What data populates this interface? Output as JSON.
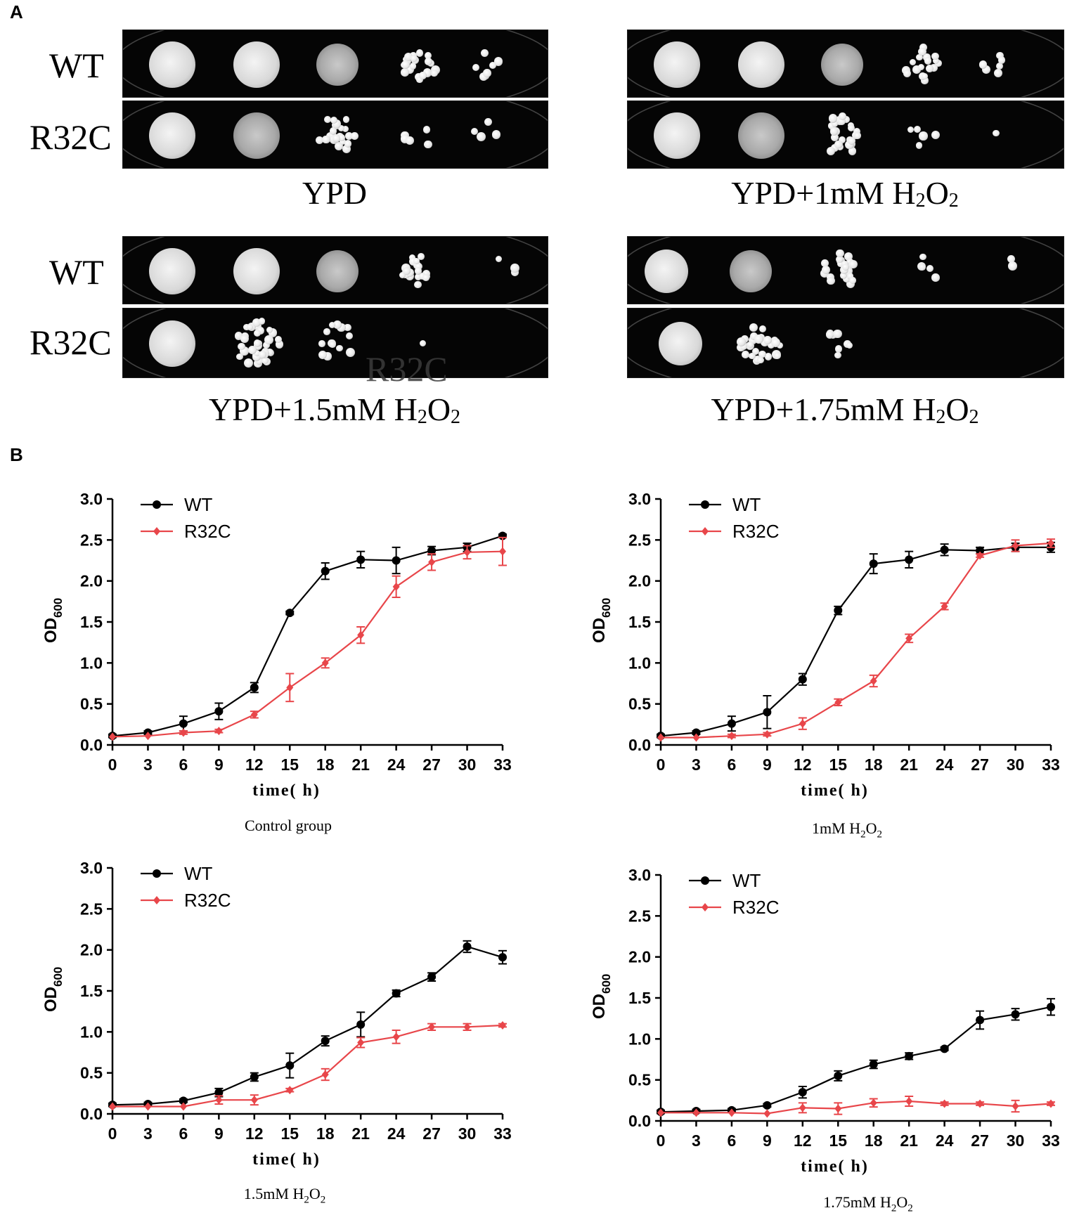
{
  "panel_a": {
    "letter": "A",
    "row_labels": [
      "WT",
      "R32C"
    ],
    "overlay_text": "R32C",
    "plates": [
      {
        "caption_prefix": "YPD",
        "caption_sub1": "",
        "caption_mid": "",
        "caption_sub2": ""
      },
      {
        "caption_prefix": "YPD+1mM H",
        "caption_sub1": "2",
        "caption_mid": "O",
        "caption_sub2": "2"
      },
      {
        "caption_prefix": "YPD+1.5mM H",
        "caption_sub1": "2",
        "caption_mid": "O",
        "caption_sub2": "2"
      },
      {
        "caption_prefix": "YPD+1.75mM H",
        "caption_sub1": "2",
        "caption_mid": "O",
        "caption_sub2": "2"
      }
    ]
  },
  "panel_b": {
    "letter": "B"
  },
  "colors": {
    "wt": "#000000",
    "r32c": "#e8464a"
  },
  "chart_data": [
    {
      "type": "line",
      "caption": {
        "prefix": "Control group",
        "sub1": "",
        "mid": "",
        "sub2": ""
      },
      "xlabel": "time( h)",
      "ylabel": "OD",
      "ylabel_sub": "600",
      "x": [
        0,
        3,
        6,
        9,
        12,
        15,
        18,
        21,
        24,
        27,
        30,
        33
      ],
      "ylim": [
        0,
        3.0
      ],
      "yticks": [
        "0.0",
        "0.5",
        "1.0",
        "1.5",
        "2.0",
        "2.5",
        "3.0"
      ],
      "legend_position": "top-left",
      "series": [
        {
          "name": "WT",
          "marker": "circle",
          "values": [
            0.11,
            0.15,
            0.26,
            0.41,
            0.7,
            1.61,
            2.12,
            2.26,
            2.25,
            2.37,
            2.41,
            2.55
          ],
          "errors": [
            0.02,
            0.02,
            0.09,
            0.1,
            0.06,
            0.02,
            0.1,
            0.1,
            0.16,
            0.05,
            0.05,
            0.02
          ]
        },
        {
          "name": "R32C",
          "marker": "diamond",
          "values": [
            0.1,
            0.11,
            0.15,
            0.17,
            0.37,
            0.7,
            1.0,
            1.34,
            1.93,
            2.23,
            2.35,
            2.36
          ],
          "errors": [
            0.01,
            0.01,
            0.02,
            0.02,
            0.04,
            0.17,
            0.06,
            0.1,
            0.13,
            0.1,
            0.08,
            0.17
          ]
        }
      ]
    },
    {
      "type": "line",
      "caption": {
        "prefix": "1mM H",
        "sub1": "2",
        "mid": "O",
        "sub2": "2"
      },
      "xlabel": "time( h)",
      "ylabel": "OD",
      "ylabel_sub": "600",
      "x": [
        0,
        3,
        6,
        9,
        12,
        15,
        18,
        21,
        24,
        27,
        30,
        33
      ],
      "ylim": [
        0,
        3.0
      ],
      "yticks": [
        "0.0",
        "0.5",
        "1.0",
        "1.5",
        "2.0",
        "2.5",
        "3.0"
      ],
      "legend_position": "top-left",
      "series": [
        {
          "name": "WT",
          "marker": "circle",
          "values": [
            0.11,
            0.15,
            0.26,
            0.4,
            0.8,
            1.64,
            2.21,
            2.26,
            2.38,
            2.37,
            2.41,
            2.41
          ],
          "errors": [
            0.02,
            0.02,
            0.09,
            0.2,
            0.07,
            0.05,
            0.12,
            0.1,
            0.07,
            0.04,
            0.05,
            0.06
          ]
        },
        {
          "name": "R32C",
          "marker": "diamond",
          "values": [
            0.09,
            0.09,
            0.11,
            0.13,
            0.26,
            0.52,
            0.78,
            1.3,
            1.69,
            2.31,
            2.43,
            2.46
          ],
          "errors": [
            0.01,
            0.01,
            0.02,
            0.02,
            0.07,
            0.04,
            0.07,
            0.05,
            0.04,
            0.02,
            0.07,
            0.05
          ]
        }
      ]
    },
    {
      "type": "line",
      "caption": {
        "prefix": "1.5mM H",
        "sub1": "2",
        "mid": "O",
        "sub2": "2"
      },
      "xlabel": "time( h)",
      "ylabel": "OD",
      "ylabel_sub": "600",
      "x": [
        0,
        3,
        6,
        9,
        12,
        15,
        18,
        21,
        24,
        27,
        30,
        33
      ],
      "ylim": [
        0,
        3.0
      ],
      "yticks": [
        "0.0",
        "0.5",
        "1.0",
        "1.5",
        "2.0",
        "2.5",
        "3.0"
      ],
      "legend_position": "top-left",
      "series": [
        {
          "name": "WT",
          "marker": "circle",
          "values": [
            0.11,
            0.12,
            0.16,
            0.26,
            0.45,
            0.59,
            0.89,
            1.09,
            1.47,
            1.67,
            2.04,
            1.91
          ],
          "errors": [
            0.02,
            0.02,
            0.02,
            0.05,
            0.05,
            0.15,
            0.06,
            0.15,
            0.04,
            0.05,
            0.07,
            0.08
          ]
        },
        {
          "name": "R32C",
          "marker": "diamond",
          "values": [
            0.09,
            0.09,
            0.09,
            0.17,
            0.17,
            0.29,
            0.48,
            0.87,
            0.94,
            1.06,
            1.06,
            1.08
          ],
          "errors": [
            0.01,
            0.01,
            0.01,
            0.05,
            0.06,
            0.02,
            0.07,
            0.06,
            0.08,
            0.04,
            0.04,
            0.02
          ]
        }
      ]
    },
    {
      "type": "line",
      "caption": {
        "prefix": "1.75mM H",
        "sub1": "2",
        "mid": "O",
        "sub2": "2"
      },
      "xlabel": "time( h)",
      "ylabel": "OD",
      "ylabel_sub": "600",
      "x": [
        0,
        3,
        6,
        9,
        12,
        15,
        18,
        21,
        24,
        27,
        30,
        33
      ],
      "ylim": [
        0,
        3.0
      ],
      "yticks": [
        "0.0",
        "0.5",
        "1.0",
        "1.5",
        "2.0",
        "2.5",
        "3.0"
      ],
      "legend_position": "top-left",
      "series": [
        {
          "name": "WT",
          "marker": "circle",
          "values": [
            0.11,
            0.12,
            0.13,
            0.19,
            0.35,
            0.55,
            0.69,
            0.79,
            0.88,
            1.23,
            1.3,
            1.39
          ],
          "errors": [
            0.02,
            0.02,
            0.02,
            0.02,
            0.07,
            0.06,
            0.05,
            0.04,
            0.02,
            0.11,
            0.07,
            0.1
          ]
        },
        {
          "name": "R32C",
          "marker": "diamond",
          "values": [
            0.1,
            0.1,
            0.1,
            0.09,
            0.16,
            0.15,
            0.22,
            0.24,
            0.21,
            0.21,
            0.18,
            0.21
          ],
          "errors": [
            0.01,
            0.01,
            0.01,
            0.01,
            0.06,
            0.07,
            0.05,
            0.06,
            0.02,
            0.02,
            0.07,
            0.02
          ]
        }
      ]
    }
  ]
}
